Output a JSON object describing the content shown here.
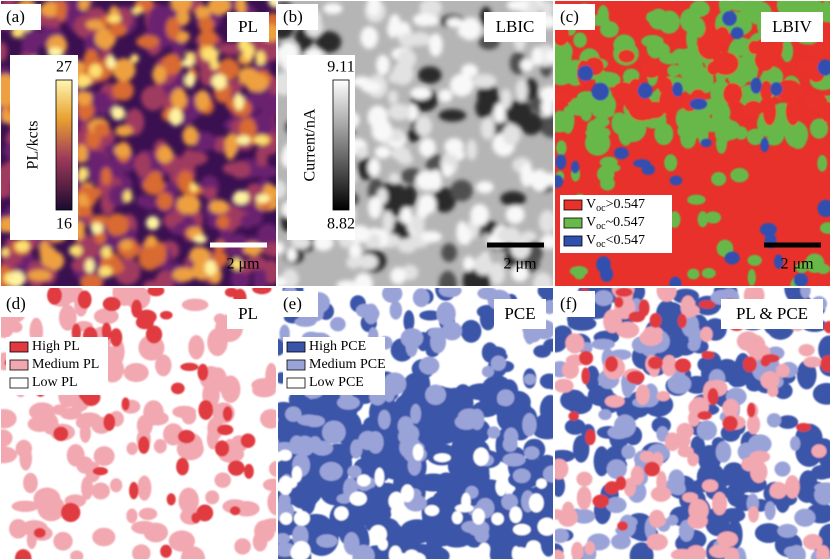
{
  "panels": [
    {
      "label": "(a)",
      "title": "PL",
      "colorbar": {
        "title": "PL/kcts",
        "max": 27,
        "min": 16
      },
      "scale_bar": "2 μm"
    },
    {
      "label": "(b)",
      "title": "LBIC",
      "colorbar": {
        "title": "Current/nA",
        "max": 9.11,
        "min": 8.82
      },
      "scale_bar": "2 μm"
    },
    {
      "label": "(c)",
      "title": "LBIV",
      "legend": [
        {
          "symbol": "V",
          "subscript": "oc",
          "text": ">0.547"
        },
        {
          "symbol": "V",
          "subscript": "oc",
          "text": "~0.547"
        },
        {
          "symbol": "V",
          "subscript": "oc",
          "text": "<0.547"
        }
      ],
      "scale_bar": "2 μm"
    },
    {
      "label": "(d)",
      "title": "PL",
      "legend": [
        {
          "text": "High PL"
        },
        {
          "text": "Medium PL"
        },
        {
          "text": "Low PL"
        }
      ]
    },
    {
      "label": "(e)",
      "title": "PCE",
      "legend": [
        {
          "text": "High PCE"
        },
        {
          "text": "Medium PCE"
        },
        {
          "text": "Low PCE"
        }
      ]
    },
    {
      "label": "(f)",
      "title": "PL & PCE"
    }
  ]
}
